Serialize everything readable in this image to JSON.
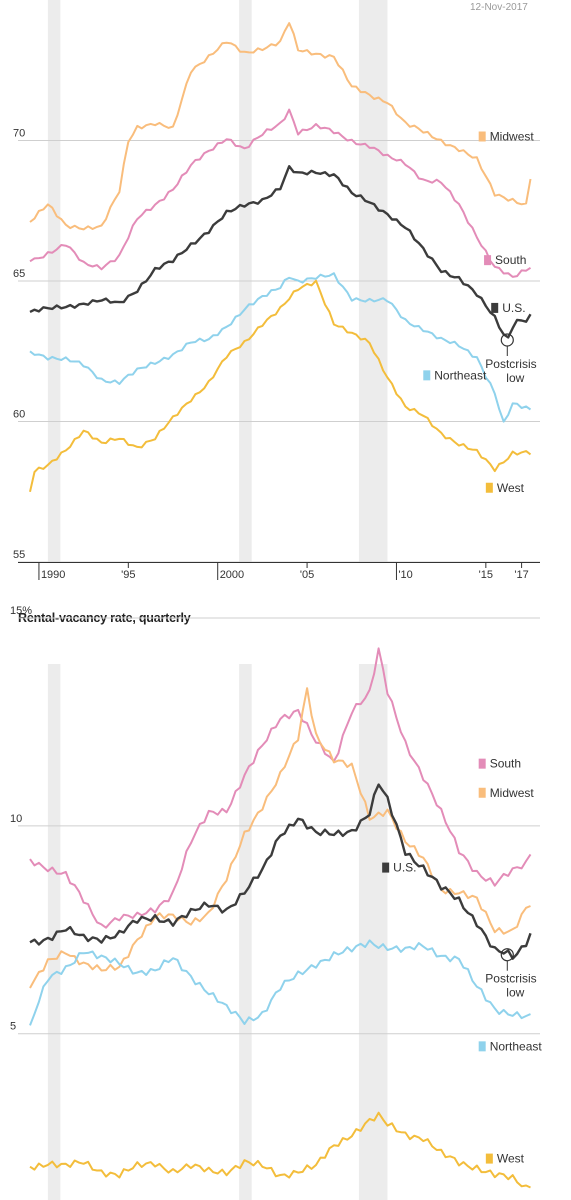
{
  "header": {
    "date": "12-Nov-2017"
  },
  "colors": {
    "Midwest": "#f9bd7c",
    "South": "#e38cb8",
    "U.S.": "#3c3c3c",
    "Northeast": "#8fd2ec",
    "West": "#f3bd3b",
    "recession": "#ececec",
    "grid": "#cfcfcf"
  },
  "chart_data": [
    {
      "type": "line",
      "title": "",
      "xlabel": "",
      "ylabel": "",
      "ylim": [
        55,
        75
      ],
      "xlim": [
        1989.5,
        2017.75
      ],
      "yticks": [
        {
          "v": 55,
          "label": "55"
        },
        {
          "v": 60,
          "label": "60"
        },
        {
          "v": 65,
          "label": "65"
        },
        {
          "v": 70,
          "label": "70"
        }
      ],
      "xticks": [
        {
          "v": 1990,
          "label": "1990"
        },
        {
          "v": 1995,
          "label": "'95"
        },
        {
          "v": 2000,
          "label": "2000"
        },
        {
          "v": 2005,
          "label": "'05"
        },
        {
          "v": 2010,
          "label": "'10"
        },
        {
          "v": 2015,
          "label": "'15"
        },
        {
          "v": 2017,
          "label": "'17"
        }
      ],
      "recessions": [
        [
          1990.5,
          1991.2
        ],
        [
          2001.2,
          2001.9
        ],
        [
          2007.9,
          2009.5
        ]
      ],
      "series": [
        {
          "name": "Midwest",
          "x": [
            1989.5,
            1990.5,
            1991.5,
            1992.5,
            1993.5,
            1994.5,
            1995.0,
            1995.5,
            1996.5,
            1997.5,
            1998.5,
            1999.5,
            2000.5,
            2001.5,
            2002.5,
            2003.5,
            2004.0,
            2004.5,
            2005.5,
            2006.5,
            2007.5,
            2008.5,
            2009.5,
            2010.5,
            2011.5,
            2012.5,
            2013.5,
            2014.5,
            2015.5,
            2016.5,
            2017.25,
            2017.6
          ],
          "y": [
            67.1,
            67.7,
            67.0,
            66.9,
            66.9,
            68.2,
            70.0,
            70.5,
            70.6,
            70.4,
            72.5,
            73.0,
            73.5,
            73.1,
            73.3,
            73.5,
            74.2,
            73.2,
            73.1,
            73.0,
            71.9,
            71.6,
            71.4,
            70.6,
            70.3,
            70.0,
            69.7,
            69.3,
            68.1,
            67.9,
            67.7,
            69.0
          ]
        },
        {
          "name": "South",
          "x": [
            1989.5,
            1990.5,
            1991.5,
            1992.5,
            1993.5,
            1994.5,
            1995.5,
            1996.5,
            1997.5,
            1998.5,
            1999.5,
            2000.5,
            2001.5,
            2002.5,
            2003.5,
            2004.0,
            2004.5,
            2005.5,
            2006.5,
            2007.5,
            2008.5,
            2009.5,
            2010.5,
            2011.5,
            2012.5,
            2013.5,
            2014.5,
            2015.5,
            2016.5,
            2017.25,
            2017.6
          ],
          "y": [
            65.7,
            66.0,
            66.3,
            65.6,
            65.5,
            65.9,
            67.2,
            67.7,
            68.3,
            69.1,
            69.6,
            70.1,
            69.7,
            70.2,
            70.6,
            71.1,
            70.3,
            70.5,
            70.3,
            70.0,
            69.8,
            69.4,
            69.2,
            68.6,
            68.5,
            67.7,
            66.6,
            65.5,
            65.1,
            65.4,
            65.5
          ]
        },
        {
          "name": "U.S.",
          "x": [
            1989.5,
            1990.5,
            1991.5,
            1992.5,
            1993.5,
            1994.5,
            1995.5,
            1996.5,
            1997.5,
            1998.5,
            1999.5,
            2000.5,
            2001.5,
            2002.5,
            2003.5,
            2004.0,
            2004.5,
            2005.5,
            2006.5,
            2007.5,
            2008.5,
            2009.5,
            2010.5,
            2011.5,
            2012.5,
            2013.5,
            2014.5,
            2015.5,
            2016.2,
            2016.6,
            2017.25,
            2017.6
          ],
          "y": [
            63.9,
            64.0,
            64.1,
            64.2,
            64.3,
            64.2,
            64.7,
            65.4,
            65.7,
            66.3,
            66.8,
            67.4,
            67.7,
            67.9,
            68.3,
            69.0,
            68.8,
            68.9,
            68.8,
            68.1,
            67.8,
            67.4,
            66.9,
            66.1,
            65.4,
            65.1,
            64.5,
            63.7,
            62.9,
            63.6,
            63.6,
            63.9
          ]
        },
        {
          "name": "Northeast",
          "x": [
            1989.5,
            1990.5,
            1991.5,
            1992.5,
            1993.5,
            1994.5,
            1995.5,
            1996.5,
            1997.5,
            1998.5,
            1999.5,
            2000.5,
            2001.5,
            2002.5,
            2003.5,
            2004.0,
            2004.5,
            2005.5,
            2006.5,
            2007.5,
            2008.5,
            2009.5,
            2010.5,
            2011.5,
            2012.5,
            2013.5,
            2014.5,
            2015.5,
            2016.0,
            2016.5,
            2017.25,
            2017.6
          ],
          "y": [
            62.5,
            62.3,
            62.2,
            62.0,
            61.5,
            61.4,
            61.8,
            62.1,
            62.4,
            62.8,
            62.9,
            63.4,
            64.0,
            64.4,
            64.8,
            65.2,
            65.0,
            65.1,
            65.2,
            64.4,
            64.3,
            64.3,
            63.6,
            63.3,
            62.9,
            62.7,
            62.3,
            61.0,
            59.9,
            60.6,
            60.5,
            60.4
          ]
        },
        {
          "name": "West",
          "x": [
            1989.5,
            1989.75,
            1990.5,
            1991.5,
            1992.5,
            1993.5,
            1994.5,
            1995.5,
            1996.5,
            1997.5,
            1998.5,
            1999.5,
            2000.5,
            2001.5,
            2002.5,
            2003.5,
            2004.5,
            2005.5,
            2006.5,
            2007.5,
            2008.5,
            2009.5,
            2010.5,
            2011.5,
            2012.5,
            2013.5,
            2014.5,
            2015.5,
            2016.5,
            2017.25,
            2017.6
          ],
          "y": [
            57.5,
            58.2,
            58.4,
            59.0,
            59.7,
            59.2,
            59.4,
            59.1,
            59.4,
            60.1,
            60.8,
            61.4,
            62.3,
            62.8,
            63.5,
            64.0,
            64.7,
            65.0,
            63.5,
            63.1,
            62.8,
            61.6,
            60.5,
            60.2,
            59.6,
            59.2,
            58.9,
            58.3,
            58.9,
            58.9,
            58.8
          ]
        }
      ],
      "labels": [
        {
          "series": "Midwest",
          "text": "Midwest",
          "pos": [
            2014.6,
            70.0
          ]
        },
        {
          "series": "South",
          "text": "South",
          "pos": [
            2014.9,
            65.6
          ]
        },
        {
          "series": "U.S.",
          "text": "U.S.",
          "pos": [
            2015.3,
            63.9
          ]
        },
        {
          "series": "Northeast",
          "text": "Northeast",
          "pos": [
            2011.5,
            61.5
          ]
        },
        {
          "series": "West",
          "text": "West",
          "pos": [
            2015.0,
            57.5
          ]
        }
      ],
      "annotation": {
        "lines": [
          "Postcrisis",
          "low"
        ],
        "at": [
          2016.2,
          62.9
        ]
      }
    },
    {
      "type": "line",
      "title": "Rental-vacancy rate, quarterly",
      "xlabel": "",
      "ylabel": "",
      "ylim": [
        1,
        15
      ],
      "xlim": [
        1989.5,
        2017.75
      ],
      "yticks": [
        {
          "v": 5,
          "label": "5"
        },
        {
          "v": 10,
          "label": "10"
        },
        {
          "v": 15,
          "label": "15%"
        }
      ],
      "recessions": [
        [
          1990.5,
          1991.2
        ],
        [
          2001.2,
          2001.9
        ],
        [
          2007.9,
          2009.5
        ]
      ],
      "series": [
        {
          "name": "South",
          "x": [
            1989.5,
            1990.5,
            1991.5,
            1992.5,
            1993.5,
            1994.5,
            1995.5,
            1996.5,
            1997.5,
            1998.5,
            1999.5,
            2000.5,
            2001.5,
            2002.5,
            2003.5,
            2004.5,
            2005.5,
            2006.5,
            2007.5,
            2008.5,
            2009.0,
            2009.5,
            2010.5,
            2011.5,
            2012.5,
            2013.5,
            2014.5,
            2015.5,
            2016.5,
            2017.25,
            2017.6
          ],
          "y": [
            9.2,
            9.0,
            8.8,
            8.2,
            7.6,
            7.8,
            7.8,
            8.0,
            8.4,
            9.6,
            10.3,
            10.4,
            11.2,
            11.9,
            12.6,
            12.8,
            12.0,
            11.5,
            12.8,
            13.2,
            14.2,
            13.2,
            12.0,
            11.2,
            10.3,
            9.4,
            8.9,
            8.6,
            8.9,
            9.1,
            9.4
          ]
        },
        {
          "name": "Midwest",
          "x": [
            1989.5,
            1990.5,
            1991.5,
            1992.5,
            1993.5,
            1994.5,
            1995.5,
            1996.5,
            1997.5,
            1998.5,
            1999.5,
            2000.5,
            2001.5,
            2002.5,
            2003.5,
            2004.5,
            2005.0,
            2005.5,
            2006.5,
            2007.5,
            2008.5,
            2009.5,
            2010.5,
            2011.5,
            2012.5,
            2013.5,
            2014.5,
            2015.5,
            2016.5,
            2017.25,
            2017.6
          ],
          "y": [
            6.1,
            6.7,
            7.0,
            6.7,
            6.5,
            6.6,
            7.3,
            7.8,
            7.8,
            7.7,
            7.9,
            8.7,
            9.8,
            10.5,
            11.2,
            12.1,
            13.3,
            12.2,
            11.6,
            11.4,
            10.2,
            10.4,
            9.6,
            9.2,
            8.5,
            8.4,
            8.2,
            7.5,
            7.5,
            8.0,
            8.1
          ]
        },
        {
          "name": "U.S.",
          "x": [
            1989.5,
            1990.5,
            1991.5,
            1992.5,
            1993.5,
            1994.5,
            1995.5,
            1996.5,
            1997.5,
            1998.5,
            1999.5,
            2000.5,
            2001.5,
            2002.5,
            2003.5,
            2004.5,
            2005.5,
            2006.5,
            2007.5,
            2008.5,
            2009.0,
            2009.5,
            2010.5,
            2011.5,
            2012.5,
            2013.5,
            2014.5,
            2015.5,
            2016.2,
            2016.6,
            2017.25,
            2017.6
          ],
          "y": [
            7.2,
            7.3,
            7.5,
            7.3,
            7.3,
            7.4,
            7.7,
            7.8,
            7.7,
            7.9,
            8.1,
            8.0,
            8.4,
            8.9,
            9.8,
            10.2,
            9.8,
            9.8,
            9.9,
            10.3,
            11.0,
            10.6,
            9.4,
            9.0,
            8.5,
            8.2,
            7.7,
            7.0,
            6.9,
            6.8,
            7.2,
            7.5
          ]
        },
        {
          "name": "Northeast",
          "x": [
            1989.5,
            1990.5,
            1991.5,
            1992.5,
            1993.5,
            1994.5,
            1995.5,
            1996.5,
            1997.5,
            1998.5,
            1999.5,
            2000.5,
            2001.5,
            2002.5,
            2003.5,
            2004.5,
            2005.5,
            2006.5,
            2007.5,
            2008.5,
            2009.5,
            2010.5,
            2011.5,
            2012.5,
            2013.5,
            2014.5,
            2015.5,
            2016.5,
            2017.25,
            2017.6
          ],
          "y": [
            5.2,
            6.3,
            6.6,
            7.0,
            6.8,
            6.7,
            6.5,
            6.5,
            6.8,
            6.4,
            6.0,
            5.6,
            5.3,
            5.5,
            6.1,
            6.4,
            6.7,
            6.9,
            7.0,
            7.2,
            7.1,
            7.0,
            7.1,
            6.9,
            6.8,
            6.1,
            5.6,
            5.5,
            5.4,
            5.5
          ]
        },
        {
          "name": "West",
          "x": [
            1989.5,
            1990.5,
            1991.5,
            1992.5,
            1993.5,
            1994.5,
            1995.5,
            1996.5,
            1997.5,
            1998.5,
            1999.5,
            2000.5,
            2001.5,
            2002.5,
            2003.5,
            2004.5,
            2005.5,
            2006.5,
            2007.5,
            2008.5,
            2009.0,
            2009.5,
            2010.5,
            2011.5,
            2012.5,
            2013.5,
            2014.5,
            2015.5,
            2016.5,
            2017.25,
            2017.6
          ],
          "y": [
            1.8,
            1.9,
            1.8,
            1.9,
            1.7,
            1.6,
            1.8,
            1.9,
            1.7,
            1.8,
            1.7,
            1.7,
            1.9,
            1.8,
            1.6,
            1.7,
            1.8,
            2.3,
            2.6,
            2.9,
            3.0,
            2.8,
            2.6,
            2.5,
            2.1,
            1.9,
            1.8,
            1.6,
            1.5,
            1.3,
            1.3
          ]
        }
      ],
      "labels": [
        {
          "series": "South",
          "text": "South",
          "pos": [
            2014.6,
            11.4
          ]
        },
        {
          "series": "Midwest",
          "text": "Midwest",
          "pos": [
            2014.6,
            10.7
          ]
        },
        {
          "series": "U.S.",
          "text": "U.S.",
          "pos": [
            2009.2,
            8.9
          ]
        },
        {
          "series": "Northeast",
          "text": "Northeast",
          "pos": [
            2014.6,
            4.6
          ]
        },
        {
          "series": "West",
          "text": "West",
          "pos": [
            2015.0,
            1.9
          ]
        }
      ],
      "annotation": {
        "lines": [
          "Postcrisis",
          "low"
        ],
        "at": [
          2016.2,
          6.9
        ]
      }
    }
  ]
}
